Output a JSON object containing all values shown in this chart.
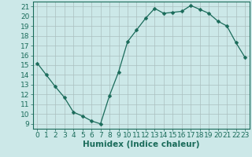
{
  "x": [
    0,
    1,
    2,
    3,
    4,
    5,
    6,
    7,
    8,
    9,
    10,
    11,
    12,
    13,
    14,
    15,
    16,
    17,
    18,
    19,
    20,
    21,
    22,
    23
  ],
  "y": [
    15.2,
    14.0,
    12.8,
    11.7,
    10.2,
    9.8,
    9.3,
    9.0,
    11.9,
    14.3,
    17.4,
    18.6,
    19.8,
    20.8,
    20.3,
    20.4,
    20.5,
    21.1,
    20.7,
    20.3,
    19.5,
    19.0,
    17.3,
    15.8
  ],
  "line_color": "#1a6b5a",
  "marker": "D",
  "marker_size": 2.5,
  "bg_color": "#cce8e8",
  "grid_color": "#aabfbf",
  "xlabel": "Humidex (Indice chaleur)",
  "xlim": [
    -0.5,
    23.5
  ],
  "ylim": [
    8.5,
    21.5
  ],
  "yticks": [
    9,
    10,
    11,
    12,
    13,
    14,
    15,
    16,
    17,
    18,
    19,
    20,
    21
  ],
  "xticks": [
    0,
    1,
    2,
    3,
    4,
    5,
    6,
    7,
    8,
    9,
    10,
    11,
    12,
    13,
    14,
    15,
    16,
    17,
    18,
    19,
    20,
    21,
    22,
    23
  ],
  "tick_color": "#1a6b5a",
  "label_fontsize": 6.5,
  "xlabel_fontsize": 7.5
}
